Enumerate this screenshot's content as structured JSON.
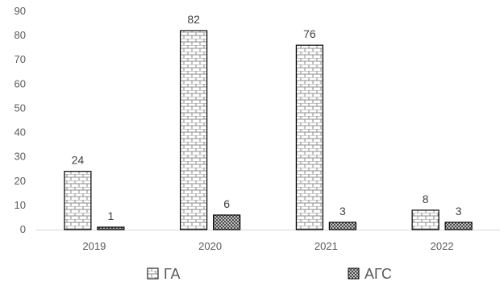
{
  "chart_data": {
    "type": "bar",
    "categories": [
      "2019",
      "2020",
      "2021",
      "2022"
    ],
    "series": [
      {
        "name": "ГА",
        "values": [
          24,
          82,
          76,
          8
        ],
        "pattern": "brick"
      },
      {
        "name": "АГС",
        "values": [
          1,
          6,
          3,
          3
        ],
        "pattern": "checker"
      }
    ],
    "ylim": [
      0,
      90
    ],
    "yticks": [
      0,
      10,
      20,
      30,
      40,
      50,
      60,
      70,
      80,
      90
    ],
    "grid": false,
    "legend": "bottom",
    "data_labels": true,
    "colors": {
      "bar_stroke": "#000000",
      "axis": "#d9d9d9",
      "text": "#595959"
    }
  }
}
